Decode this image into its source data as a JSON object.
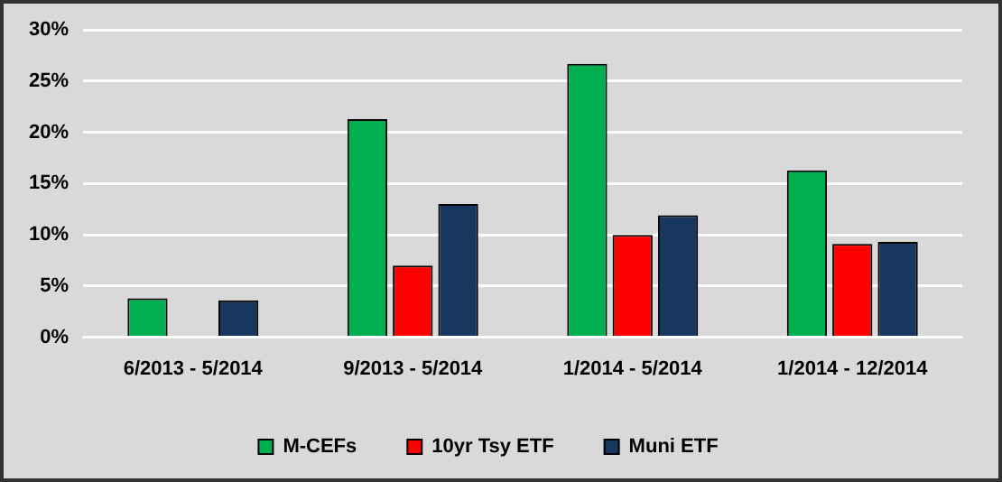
{
  "chart_data": {
    "type": "bar",
    "categories": [
      "6/2013 - 5/2014",
      "9/2013 - 5/2014",
      "1/2014 - 5/2014",
      "1/2014 - 12/2014"
    ],
    "series": [
      {
        "name": "M-CEFs",
        "color": "#00b050",
        "values": [
          3.8,
          21.3,
          26.7,
          16.3
        ]
      },
      {
        "name": "10yr Tsy ETF",
        "color": "#ff0000",
        "values": [
          null,
          7.0,
          10.0,
          9.1
        ]
      },
      {
        "name": "Muni ETF",
        "color": "#17375e",
        "values": [
          3.6,
          13.0,
          11.9,
          9.3
        ]
      }
    ],
    "ylim": [
      0,
      30
    ],
    "yticks": [
      {
        "value": 0,
        "label": "0%"
      },
      {
        "value": 5,
        "label": "5%"
      },
      {
        "value": 10,
        "label": "10%"
      },
      {
        "value": 15,
        "label": "15%"
      },
      {
        "value": 20,
        "label": "20%"
      },
      {
        "value": 25,
        "label": "25%"
      },
      {
        "value": 30,
        "label": "30%"
      }
    ],
    "grid": "y",
    "legend": "bottom"
  }
}
